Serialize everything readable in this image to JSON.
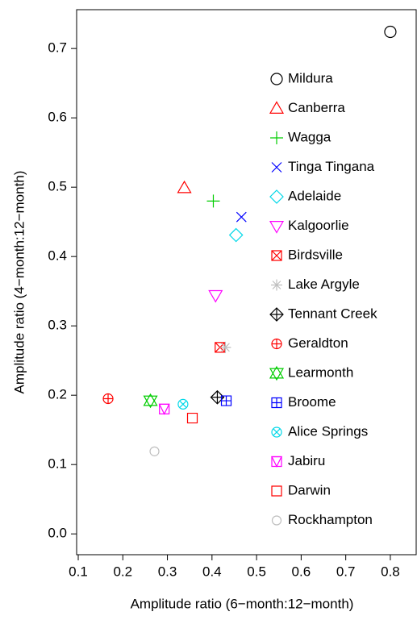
{
  "chart_data": {
    "type": "scatter",
    "xlabel": "Amplitude ratio (6−month:12−month)",
    "ylabel": "Amplitude ratio (4−month:12−month)",
    "xlim": [
      0.0964,
      0.858
    ],
    "ylim": [
      -0.03,
      0.756
    ],
    "xticks": [
      0.1,
      0.2,
      0.3,
      0.4,
      0.5,
      0.6,
      0.7,
      0.8
    ],
    "yticks": [
      {
        "value": 0,
        "label": "0.0"
      },
      0.1,
      0.2,
      0.3,
      0.4,
      0.5,
      0.6,
      0.7
    ],
    "series": [
      {
        "name": "Mildura",
        "color": "#000000",
        "marker": "circle",
        "x": [
          0.8
        ],
        "values": [
          0.724
        ]
      },
      {
        "name": "Canberra",
        "color": "#ff0000",
        "marker": "triangle",
        "x": [
          0.338
        ],
        "values": [
          0.499
        ]
      },
      {
        "name": "Wagga",
        "color": "#00cd00",
        "marker": "plus",
        "x": [
          0.403
        ],
        "values": [
          0.48
        ]
      },
      {
        "name": "Tinga Tingana",
        "color": "#0000ff",
        "marker": "cross",
        "x": [
          0.466
        ],
        "values": [
          0.457
        ]
      },
      {
        "name": "Adelaide",
        "color": "#00d8e8",
        "marker": "diamond",
        "x": [
          0.454
        ],
        "values": [
          0.431
        ]
      },
      {
        "name": "Kalgoorlie",
        "color": "#ff00ff",
        "marker": "triangle-down",
        "x": [
          0.408
        ],
        "values": [
          0.344
        ]
      },
      {
        "name": "Birdsville",
        "color": "#ff0000",
        "marker": "square-cross",
        "x": [
          0.418
        ],
        "values": [
          0.269
        ]
      },
      {
        "name": "Lake Argyle",
        "color": "#bebebe",
        "marker": "asterisk",
        "x": [
          0.43
        ],
        "values": [
          0.269
        ]
      },
      {
        "name": "Tennant Creek",
        "color": "#000000",
        "marker": "diamond-plus",
        "x": [
          0.412
        ],
        "values": [
          0.197
        ]
      },
      {
        "name": "Geraldton",
        "color": "#ff0000",
        "marker": "circle-plus",
        "x": [
          0.167
        ],
        "values": [
          0.195
        ]
      },
      {
        "name": "Learmonth",
        "color": "#00cd00",
        "marker": "star",
        "x": [
          0.262
        ],
        "values": [
          0.192
        ]
      },
      {
        "name": "Broome",
        "color": "#0000ff",
        "marker": "square-plus",
        "x": [
          0.432
        ],
        "values": [
          0.192
        ]
      },
      {
        "name": "Alice Springs",
        "color": "#00d8e8",
        "marker": "circle-cross",
        "x": [
          0.335
        ],
        "values": [
          0.187
        ]
      },
      {
        "name": "Jabiru",
        "color": "#ff00ff",
        "marker": "square-triangle",
        "x": [
          0.293
        ],
        "values": [
          0.18
        ]
      },
      {
        "name": "Darwin",
        "color": "#ff0000",
        "marker": "filled-square",
        "x": [
          0.356
        ],
        "values": [
          0.167
        ]
      },
      {
        "name": "Rockhampton",
        "color": "#bebebe",
        "marker": "filled-circle",
        "x": [
          0.271
        ],
        "values": [
          0.119
        ]
      }
    ]
  }
}
